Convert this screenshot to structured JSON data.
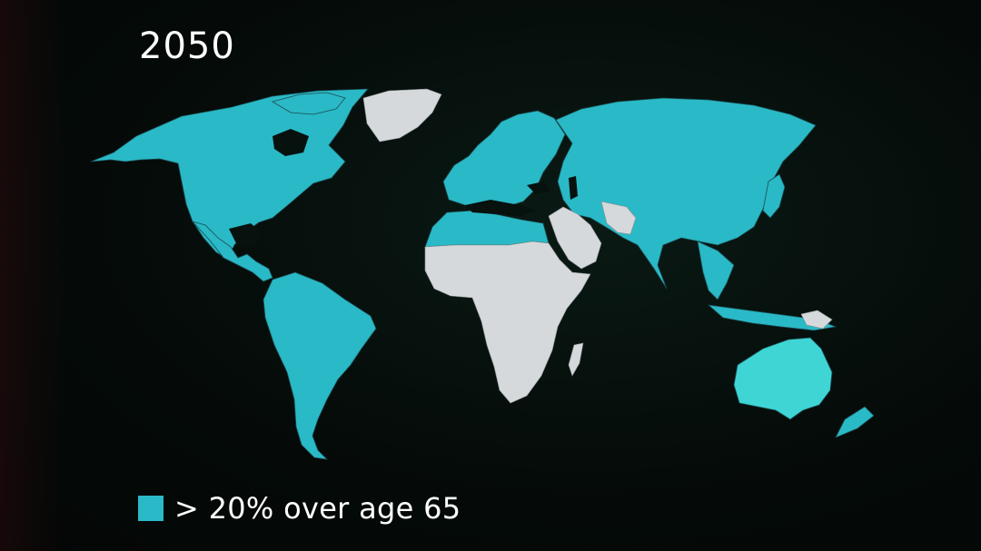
{
  "title": "2050",
  "colors": {
    "highlight": "#2ab9c6",
    "highlight_bright": "#3fd5d5",
    "other": "#d6d9db",
    "border": "#1a3b3f"
  },
  "legend": {
    "label": "> 20% over age 65"
  }
}
